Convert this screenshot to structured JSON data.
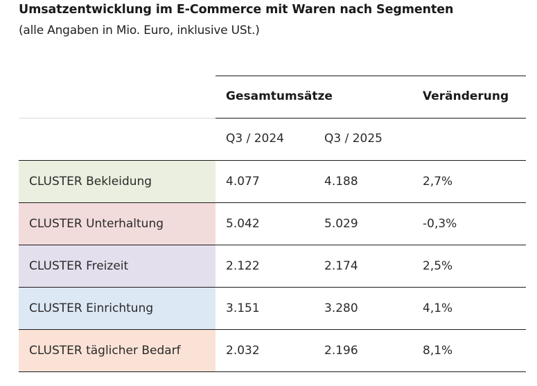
{
  "title": "Umsatzentwicklung im E-Commerce mit Waren nach Segmenten",
  "subtitle": "(alle Angaben in Mio. Euro, inklusive USt.)",
  "table": {
    "header_group": "Gesamtumsätze",
    "header_change": "Veränderung",
    "period_1": "Q3 / 2024",
    "period_2": "Q3 / 2025",
    "rows": [
      {
        "label": "CLUSTER Bekleidung",
        "v2024": "4.077",
        "v2025": "4.188",
        "change": "2,7%",
        "color": "#eaefdf"
      },
      {
        "label": "CLUSTER Unterhaltung",
        "v2024": "5.042",
        "v2025": "5.029",
        "change": "-0,3%",
        "color": "#f2dcdb"
      },
      {
        "label": "CLUSTER Freizeit",
        "v2024": "2.122",
        "v2025": "2.174",
        "change": "2,5%",
        "color": "#e4dfed"
      },
      {
        "label": "CLUSTER Einrichtung",
        "v2024": "3.151",
        "v2025": "3.280",
        "change": "4,1%",
        "color": "#dde8f5"
      },
      {
        "label": "CLUSTER täglicher Bedarf",
        "v2024": "2.032",
        "v2025": "2.196",
        "change": "8,1%",
        "color": "#fbe2d6"
      }
    ]
  }
}
